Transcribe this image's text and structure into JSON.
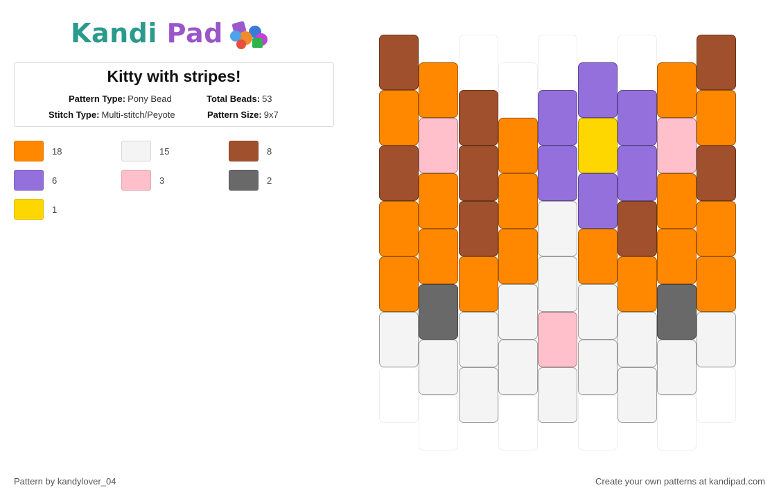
{
  "logo": {
    "part1": "Kandi",
    "part2": "Pad"
  },
  "title": "Kitty with stripes!",
  "meta": {
    "pattern_type_label": "Pattern Type:",
    "pattern_type": "Pony Bead",
    "total_beads_label": "Total Beads:",
    "total_beads": "53",
    "stitch_type_label": "Stitch Type:",
    "stitch_type": "Multi-stitch/Peyote",
    "pattern_size_label": "Pattern Size:",
    "pattern_size": "9x7"
  },
  "palette": [
    {
      "color": "#FF8800",
      "count": "18"
    },
    {
      "color": "#F4F4F4",
      "count": "15"
    },
    {
      "color": "#A0502C",
      "count": "8"
    },
    {
      "color": "#9370DB",
      "count": "6"
    },
    {
      "color": "#FFC0CB",
      "count": "3"
    },
    {
      "color": "#696969",
      "count": "2"
    },
    {
      "color": "#FFD700",
      "count": "1"
    }
  ],
  "grid": {
    "columns": [
      [
        "#A0502C",
        "#FF8800",
        "#A0502C",
        "#FF8800",
        "#FF8800",
        "#F4F4F4",
        ""
      ],
      [
        "#FF8800",
        "#FFC0CB",
        "#FF8800",
        "#FF8800",
        "#696969",
        "#F4F4F4",
        ""
      ],
      [
        "",
        "#A0502C",
        "#A0502C",
        "#A0502C",
        "#FF8800",
        "#F4F4F4",
        "#F4F4F4"
      ],
      [
        "",
        "#FF8800",
        "#FF8800",
        "#FF8800",
        "#F4F4F4",
        "#F4F4F4",
        ""
      ],
      [
        "",
        "#9370DB",
        "#9370DB",
        "#F4F4F4",
        "#F4F4F4",
        "#FFC0CB",
        "#F4F4F4"
      ],
      [
        "#9370DB",
        "#FFD700",
        "#9370DB",
        "#FF8800",
        "#F4F4F4",
        "#F4F4F4",
        ""
      ],
      [
        "",
        "#9370DB",
        "#9370DB",
        "#A0502C",
        "#FF8800",
        "#F4F4F4",
        "#F4F4F4"
      ],
      [
        "#FF8800",
        "#FFC0CB",
        "#FF8800",
        "#FF8800",
        "#696969",
        "#F4F4F4",
        ""
      ],
      [
        "#A0502C",
        "#FF8800",
        "#A0502C",
        "#FF8800",
        "#FF8800",
        "#F4F4F4",
        ""
      ]
    ]
  },
  "footer": {
    "credit": "Pattern by kandylover_04",
    "cta": "Create your own patterns at kandipad.com"
  }
}
